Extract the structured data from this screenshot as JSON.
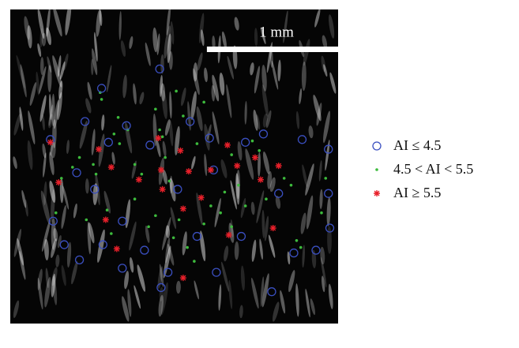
{
  "chart_data": {
    "type": "scatter",
    "xlim": [
      0,
      2.37
    ],
    "ylim": [
      0,
      2.27
    ],
    "scale_bar": {
      "label": "1 mm",
      "length": 1
    },
    "series": [
      {
        "name": "AI ≤ 4.5",
        "color": "#3a4fc0",
        "marker": "o",
        "x": [
          1.08,
          0.66,
          0.54,
          0.29,
          0.48,
          0.71,
          0.84,
          1.01,
          1.3,
          1.44,
          1.47,
          1.7,
          1.83,
          2.11,
          2.3,
          0.31,
          0.39,
          0.5,
          0.67,
          0.81,
          0.97,
          1.09,
          1.14,
          1.49,
          1.89,
          2.05,
          2.21,
          2.31,
          2.3,
          1.94,
          1.67,
          1.35,
          1.21,
          0.61,
          0.81
        ],
        "values": [
          1.84,
          1.7,
          1.46,
          1.33,
          1.09,
          1.31,
          1.43,
          1.29,
          1.46,
          1.34,
          1.11,
          1.31,
          1.37,
          1.33,
          1.26,
          0.74,
          0.57,
          0.46,
          0.57,
          0.4,
          0.53,
          0.26,
          0.37,
          0.37,
          0.23,
          0.51,
          0.53,
          0.69,
          0.94,
          0.94,
          0.63,
          0.63,
          0.97,
          0.97,
          0.74
        ]
      },
      {
        "name": "4.5 < AI < 5.5",
        "color": "#3dbb3d",
        "marker": ".",
        "x": [
          0.65,
          0.66,
          0.78,
          0.75,
          0.79,
          1.05,
          1.08,
          1.1,
          1.12,
          1.15,
          0.95,
          0.9,
          0.6,
          0.62,
          0.45,
          0.37,
          0.33,
          0.55,
          0.7,
          0.73,
          0.9,
          1.0,
          1.05,
          1.18,
          1.22,
          1.28,
          1.33,
          1.4,
          1.45,
          1.52,
          1.55,
          1.6,
          1.65,
          1.7,
          1.75,
          1.8,
          1.85,
          1.98,
          2.03,
          2.07,
          2.1,
          2.25,
          2.28,
          1.25,
          1.2,
          1.4,
          0.5,
          0.85,
          1.35,
          1.6
        ],
        "values": [
          1.67,
          1.62,
          1.49,
          1.37,
          1.3,
          1.55,
          1.4,
          1.35,
          1.2,
          1.03,
          1.08,
          1.15,
          1.15,
          1.08,
          1.13,
          1.05,
          0.8,
          0.75,
          0.82,
          0.65,
          0.9,
          0.7,
          0.78,
          0.62,
          0.75,
          0.55,
          0.45,
          0.72,
          0.85,
          0.8,
          0.95,
          0.7,
          1.0,
          0.85,
          1.32,
          1.25,
          0.9,
          1.05,
          1.0,
          0.6,
          0.55,
          0.8,
          1.05,
          1.5,
          1.68,
          1.6,
          1.2,
          1.4,
          1.3,
          1.22
        ]
      },
      {
        "name": "AI ≥ 5.5",
        "color": "#e8202a",
        "marker": "*",
        "x": [
          0.29,
          0.35,
          0.64,
          0.73,
          0.69,
          0.77,
          0.93,
          1.07,
          1.09,
          1.1,
          1.23,
          1.25,
          1.29,
          1.38,
          1.45,
          1.57,
          1.58,
          1.64,
          1.77,
          1.81,
          1.9,
          1.94,
          1.25
        ],
        "values": [
          1.31,
          1.02,
          1.26,
          1.13,
          0.75,
          0.54,
          1.04,
          1.34,
          1.11,
          0.97,
          1.25,
          0.83,
          1.1,
          0.91,
          1.11,
          1.29,
          0.64,
          1.14,
          1.2,
          1.04,
          0.69,
          1.14,
          0.33
        ]
      }
    ]
  }
}
